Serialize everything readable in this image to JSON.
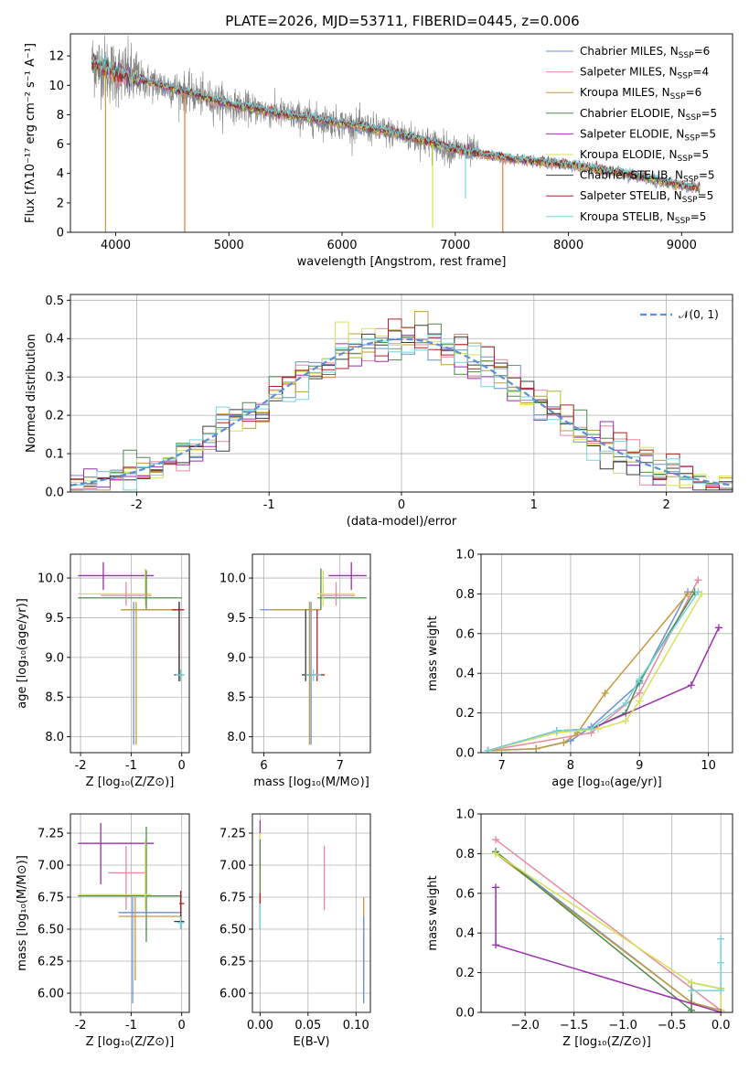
{
  "colors": {
    "Chabrier MILES": "#6a8fcf",
    "Salpeter MILES": "#e8899e",
    "Kroupa MILES": "#c49a3a",
    "Chabrier ELODIE": "#4e8a4e",
    "Salpeter ELODIE": "#9b2fae",
    "Kroupa ELODIE": "#d7e25a",
    "Chabrier STELIB": "#3a3a3a",
    "Salpeter STELIB": "#b22222",
    "Kroupa STELIB": "#74d3d9",
    "data": "#808080",
    "normal": "#5b8ed6",
    "orange": "#e07b39",
    "lime": "#a8d65a"
  },
  "legend_models": [
    {
      "key": "Chabrier MILES",
      "label": "Chabrier MILES, N",
      "sub": "SSP",
      "n": "=6"
    },
    {
      "key": "Salpeter MILES",
      "label": "Salpeter MILES, N",
      "sub": "SSP",
      "n": "=4"
    },
    {
      "key": "Kroupa MILES",
      "label": "Kroupa MILES, N",
      "sub": "SSP",
      "n": "=6"
    },
    {
      "key": "Chabrier ELODIE",
      "label": "Chabrier ELODIE, N",
      "sub": "SSP",
      "n": "=5"
    },
    {
      "key": "Salpeter ELODIE",
      "label": "Salpeter ELODIE, N",
      "sub": "SSP",
      "n": "=5"
    },
    {
      "key": "Kroupa ELODIE",
      "label": "Kroupa ELODIE, N",
      "sub": "SSP",
      "n": "=5"
    },
    {
      "key": "Chabrier STELIB",
      "label": "Chabrier STELIB, N",
      "sub": "SSP",
      "n": "=5"
    },
    {
      "key": "Salpeter STELIB",
      "label": "Salpeter STELIB, N",
      "sub": "SSP",
      "n": "=5"
    },
    {
      "key": "Kroupa STELIB",
      "label": "Kroupa STELIB, N",
      "sub": "SSP",
      "n": "=5"
    }
  ],
  "chart_data": [
    {
      "id": "spectrum",
      "type": "line",
      "title": "PLATE=2026, MJD=53711, FIBERID=0445, z=0.006",
      "xlabel": "wavelength [Angstrom, rest frame]",
      "ylabel": "Flux [fλ10⁻¹⁷ erg cm⁻² s⁻¹ A⁻¹]",
      "xlim": [
        3600,
        9450
      ],
      "ylim": [
        0,
        13.5
      ],
      "xticks": [
        4000,
        5000,
        6000,
        7000,
        8000,
        9000
      ],
      "yticks": [
        0,
        2,
        4,
        6,
        8,
        10,
        12
      ],
      "continuum": [
        [
          3800,
          11.5
        ],
        [
          4000,
          10.8
        ],
        [
          4500,
          9.8
        ],
        [
          5000,
          8.7
        ],
        [
          5500,
          8.0
        ],
        [
          6000,
          7.4
        ],
        [
          6500,
          6.7
        ],
        [
          7000,
          5.6
        ],
        [
          7500,
          5.0
        ],
        [
          8000,
          4.6
        ],
        [
          8500,
          4.0
        ],
        [
          9000,
          3.2
        ],
        [
          9150,
          3.0
        ]
      ],
      "dips": [
        {
          "x": 3910,
          "y": 0
        },
        {
          "x": 4610,
          "y": 0
        },
        {
          "x": 6800,
          "y": 0.3
        },
        {
          "x": 7090,
          "y": 2.3
        },
        {
          "x": 7420,
          "y": 0
        }
      ],
      "legend_position": "upper-right"
    },
    {
      "id": "residuals",
      "type": "histogram",
      "xlabel": "(data-model)/error",
      "ylabel": "Normed distribution",
      "xlim": [
        -2.5,
        2.5
      ],
      "ylim": [
        0,
        0.515
      ],
      "xticks": [
        -2,
        -1,
        0,
        1,
        2
      ],
      "yticks": [
        0.0,
        0.1,
        0.2,
        0.3,
        0.4,
        0.5
      ],
      "bin_width": 0.1,
      "normal_label": "𝒩(0, 1)",
      "legend_position": "upper-right",
      "grid": true
    },
    {
      "id": "age_vs_Z",
      "type": "errorbar",
      "xlabel": "Z [log₁₀(Z/Z⊙)]",
      "ylabel": "age  [log₁₀(age/yr)]",
      "xlim": [
        -2.2,
        0.15
      ],
      "ylim": [
        7.8,
        10.3
      ],
      "xticks": [
        -2,
        -1,
        0
      ],
      "yticks": [
        8.0,
        8.5,
        9.0,
        9.5,
        10.0
      ],
      "points": [
        {
          "m": "Salpeter ELODIE",
          "x": -1.55,
          "y": 10.03,
          "xe": [
            -2.05,
            -0.55
          ],
          "ye": [
            9.85,
            10.2
          ]
        },
        {
          "m": "Kroupa ELODIE",
          "x": -0.72,
          "y": 9.8,
          "xe": [
            -2.05,
            -0.6
          ],
          "ye": [
            9.65,
            10.12
          ]
        },
        {
          "m": "Chabrier ELODIE",
          "x": -0.7,
          "y": 9.75,
          "xe": [
            -2.05,
            0.0
          ],
          "ye": [
            9.6,
            10.1
          ]
        },
        {
          "m": "Salpeter MILES",
          "x": -1.1,
          "y": 9.78,
          "xe": [
            -1.6,
            -0.6
          ],
          "ye": [
            9.65,
            9.95
          ]
        },
        {
          "m": "Chabrier MILES",
          "x": -0.95,
          "y": 9.6,
          "xe": [
            -1.2,
            0.0
          ],
          "ye": [
            7.9,
            9.7
          ]
        },
        {
          "m": "Kroupa MILES",
          "x": -0.9,
          "y": 9.6,
          "xe": [
            -1.2,
            0.0
          ],
          "ye": [
            7.9,
            9.7
          ]
        },
        {
          "m": "Salpeter STELIB",
          "x": -0.05,
          "y": 9.6,
          "xe": [
            -0.2,
            0.05
          ],
          "ye": [
            8.7,
            9.7
          ]
        },
        {
          "m": "Chabrier STELIB",
          "x": -0.05,
          "y": 8.78,
          "xe": [
            -0.15,
            0.05
          ],
          "ye": [
            8.7,
            9.7
          ]
        },
        {
          "m": "Kroupa STELIB",
          "x": -0.02,
          "y": 8.78,
          "xe": [
            -0.12,
            0.05
          ],
          "ye": [
            8.7,
            8.85
          ]
        }
      ]
    },
    {
      "id": "age_vs_mass",
      "type": "errorbar",
      "xlabel": "mass [log₁₀(M/M⊙)]",
      "ylabel": "",
      "xlim": [
        5.85,
        7.4
      ],
      "ylim": [
        7.8,
        10.3
      ],
      "xticks": [
        6,
        7
      ],
      "yticks": [
        8.0,
        8.5,
        9.0,
        9.5,
        10.0
      ],
      "points": [
        {
          "m": "Salpeter ELODIE",
          "x": 7.15,
          "y": 10.03,
          "xe": [
            6.85,
            7.35
          ],
          "ye": [
            9.85,
            10.2
          ]
        },
        {
          "m": "Chabrier ELODIE",
          "x": 6.75,
          "y": 9.75,
          "xe": [
            6.7,
            7.35
          ],
          "ye": [
            9.6,
            10.12
          ]
        },
        {
          "m": "Kroupa ELODIE",
          "x": 6.78,
          "y": 9.8,
          "xe": [
            6.7,
            7.2
          ],
          "ye": [
            9.65,
            10.1
          ]
        },
        {
          "m": "Salpeter MILES",
          "x": 6.95,
          "y": 9.78,
          "xe": [
            6.75,
            7.2
          ],
          "ye": [
            9.65,
            9.95
          ]
        },
        {
          "m": "Chabrier MILES",
          "x": 6.62,
          "y": 9.6,
          "xe": [
            5.95,
            6.75
          ],
          "ye": [
            7.9,
            9.7
          ]
        },
        {
          "m": "Kroupa MILES",
          "x": 6.6,
          "y": 9.6,
          "xe": [
            6.1,
            6.75
          ],
          "ye": [
            7.9,
            9.7
          ]
        },
        {
          "m": "Chabrier STELIB",
          "x": 6.55,
          "y": 8.78,
          "xe": [
            6.5,
            6.65
          ],
          "ye": [
            8.7,
            9.6
          ]
        },
        {
          "m": "Salpeter STELIB",
          "x": 6.7,
          "y": 8.78,
          "xe": [
            6.55,
            6.8
          ],
          "ye": [
            8.7,
            9.6
          ]
        },
        {
          "m": "Kroupa STELIB",
          "x": 6.65,
          "y": 8.78,
          "xe": [
            6.55,
            6.75
          ],
          "ye": [
            8.7,
            8.85
          ]
        }
      ]
    },
    {
      "id": "massweight_vs_age",
      "type": "line",
      "xlabel": "age  [log₁₀(age/yr)]",
      "ylabel": "mass weight",
      "xlim": [
        6.7,
        10.35
      ],
      "ylim": [
        0,
        1.0
      ],
      "xticks": [
        7,
        8,
        9,
        10
      ],
      "yticks": [
        0.0,
        0.2,
        0.4,
        0.6,
        0.8,
        1.0
      ],
      "series": [
        {
          "m": "Chabrier MILES",
          "x": [
            6.8,
            7.5,
            8.0,
            8.3,
            9.0,
            9.7
          ],
          "y": [
            0.01,
            0.02,
            0.06,
            0.13,
            0.35,
            0.81
          ]
        },
        {
          "m": "Salpeter MILES",
          "x": [
            6.8,
            8.3,
            9.0,
            9.85
          ],
          "y": [
            0.01,
            0.1,
            0.3,
            0.87
          ]
        },
        {
          "m": "Kroupa MILES",
          "x": [
            6.8,
            7.5,
            7.9,
            8.1,
            8.5,
            9.7
          ],
          "y": [
            0.01,
            0.02,
            0.05,
            0.1,
            0.3,
            0.8
          ]
        },
        {
          "m": "Chabrier ELODIE",
          "x": [
            6.8,
            7.8,
            8.3,
            8.8,
            9.0,
            9.8
          ],
          "y": [
            0.01,
            0.11,
            0.12,
            0.2,
            0.36,
            0.81
          ]
        },
        {
          "m": "Salpeter ELODIE",
          "x": [
            6.8,
            7.8,
            8.3,
            9.75,
            10.15
          ],
          "y": [
            0.01,
            0.11,
            0.12,
            0.34,
            0.63
          ]
        },
        {
          "m": "Kroupa ELODIE",
          "x": [
            6.8,
            7.8,
            8.4,
            8.8,
            9.0,
            9.9
          ],
          "y": [
            0.01,
            0.1,
            0.12,
            0.16,
            0.26,
            0.8
          ]
        },
        {
          "m": "Kroupa STELIB",
          "x": [
            6.8,
            7.8,
            8.3,
            8.8,
            9.0,
            9.85
          ],
          "y": [
            0.01,
            0.11,
            0.12,
            0.25,
            0.37,
            0.81
          ]
        }
      ]
    },
    {
      "id": "mass_vs_Z",
      "type": "errorbar",
      "xlabel": "Z [log₁₀(Z/Z⊙)]",
      "ylabel": "mass [log₁₀(M/M⊙)]",
      "xlim": [
        -2.2,
        0.15
      ],
      "ylim": [
        5.85,
        7.4
      ],
      "xticks": [
        -2,
        -1,
        0
      ],
      "yticks": [
        6.0,
        6.25,
        6.5,
        6.75,
        7.0,
        7.25
      ],
      "points": [
        {
          "m": "Salpeter ELODIE",
          "x": -1.6,
          "y": 7.17,
          "xe": [
            -2.05,
            -0.55
          ],
          "ye": [
            6.85,
            7.33
          ]
        },
        {
          "m": "Salpeter MILES",
          "x": -1.1,
          "y": 6.94,
          "xe": [
            -1.45,
            -0.7
          ],
          "ye": [
            6.65,
            7.15
          ]
        },
        {
          "m": "Chabrier ELODIE",
          "x": -0.7,
          "y": 6.76,
          "xe": [
            -2.05,
            0.0
          ],
          "ye": [
            6.4,
            7.3
          ]
        },
        {
          "m": "Kroupa ELODIE",
          "x": -0.72,
          "y": 6.77,
          "xe": [
            -2.05,
            -0.6
          ],
          "ye": [
            6.65,
            7.2
          ]
        },
        {
          "m": "Chabrier MILES",
          "x": -0.97,
          "y": 6.63,
          "xe": [
            -1.25,
            0.0
          ],
          "ye": [
            5.92,
            6.75
          ]
        },
        {
          "m": "Kroupa MILES",
          "x": -0.92,
          "y": 6.6,
          "xe": [
            -1.25,
            0.0
          ],
          "ye": [
            6.1,
            6.75
          ]
        },
        {
          "m": "Salpeter STELIB",
          "x": -0.02,
          "y": 6.7,
          "xe": [
            -0.05,
            0.05
          ],
          "ye": [
            6.62,
            6.8
          ]
        },
        {
          "m": "Chabrier STELIB",
          "x": -0.02,
          "y": 6.56,
          "xe": [
            -0.15,
            0.05
          ],
          "ye": [
            6.5,
            6.62
          ]
        },
        {
          "m": "Kroupa STELIB",
          "x": -0.02,
          "y": 6.55,
          "xe": [
            -0.08,
            0.05
          ],
          "ye": [
            6.5,
            6.6
          ]
        }
      ]
    },
    {
      "id": "mass_vs_ebv",
      "type": "errorbar",
      "xlabel": "E(B-V)",
      "ylabel": "",
      "xlim": [
        -0.008,
        0.115
      ],
      "ylim": [
        5.85,
        7.4
      ],
      "xticks": [
        0.0,
        0.05,
        0.1
      ],
      "ytick_labels": [
        "6.00",
        "6.25",
        "6.50",
        "6.75",
        "7.00",
        "7.25"
      ],
      "xtick_labels": [
        "0.00",
        "0.05",
        "0.10"
      ],
      "yticks": [
        6.0,
        6.25,
        6.5,
        6.75,
        7.0,
        7.25
      ],
      "points": [
        {
          "m": "Salpeter ELODIE",
          "x": 0.0,
          "y": 7.17,
          "xe": [
            0.0,
            0.0
          ],
          "ye": [
            7.0,
            7.35
          ]
        },
        {
          "m": "Kroupa ELODIE",
          "x": 0.0,
          "y": 6.9,
          "xe": [
            0.0,
            0.0
          ],
          "ye": [
            6.55,
            7.25
          ]
        },
        {
          "m": "Chabrier ELODIE",
          "x": 0.0,
          "y": 6.75,
          "xe": [
            0.0,
            0.0
          ],
          "ye": [
            6.5,
            7.2
          ]
        },
        {
          "m": "Salpeter MILES",
          "x": 0.067,
          "y": 6.9,
          "xe": [
            0.067,
            0.067
          ],
          "ye": [
            6.65,
            7.15
          ]
        },
        {
          "m": "Kroupa MILES",
          "x": 0.108,
          "y": 6.6,
          "xe": [
            0.108,
            0.108
          ],
          "ye": [
            6.1,
            6.75
          ]
        },
        {
          "m": "Chabrier MILES",
          "x": 0.108,
          "y": 6.3,
          "xe": [
            0.108,
            0.108
          ],
          "ye": [
            5.92,
            6.6
          ]
        },
        {
          "m": "Salpeter STELIB",
          "x": 0.0,
          "y": 6.72,
          "xe": [
            0.0,
            0.0
          ],
          "ye": [
            6.68,
            6.78
          ]
        },
        {
          "m": "Kroupa STELIB",
          "x": 0.0,
          "y": 6.6,
          "xe": [
            0.0,
            0.0
          ],
          "ye": [
            6.5,
            6.7
          ]
        }
      ]
    },
    {
      "id": "massweight_vs_Z",
      "type": "line",
      "xlabel": "Z [log₁₀(Z/Z⊙)]",
      "ylabel": "mass weight",
      "xlim": [
        -2.45,
        0.12
      ],
      "ylim": [
        0,
        1.0
      ],
      "xticks": [
        -2.0,
        -1.5,
        -1.0,
        -0.5,
        0.0
      ],
      "xtick_labels": [
        "−2.0",
        "−1.5",
        "−1.0",
        "−0.5",
        "0.0"
      ],
      "yticks": [
        0.0,
        0.2,
        0.4,
        0.6,
        0.8,
        1.0
      ],
      "series": [
        {
          "m": "Salpeter MILES",
          "x": [
            -2.3,
            0.0
          ],
          "y": [
            0.87,
            0.01
          ]
        },
        {
          "m": "Chabrier MILES",
          "x": [
            -2.3,
            -0.3,
            0.0
          ],
          "y": [
            0.81,
            0.05,
            0.01
          ]
        },
        {
          "m": "Kroupa MILES",
          "x": [
            -2.3,
            -0.3,
            0.0
          ],
          "y": [
            0.8,
            0.05,
            0.01
          ]
        },
        {
          "m": "Chabrier ELODIE",
          "x": [
            -2.3,
            -0.3,
            -0.3,
            0.0,
            0.0
          ],
          "y": [
            0.81,
            0.01,
            0.15,
            0.12,
            0.01
          ]
        },
        {
          "m": "Kroupa ELODIE",
          "x": [
            -2.3,
            -0.3,
            0.0,
            0.0
          ],
          "y": [
            0.8,
            0.15,
            0.12,
            0.01
          ]
        },
        {
          "m": "Salpeter ELODIE",
          "x": [
            -2.3,
            -2.3,
            0.0
          ],
          "y": [
            0.63,
            0.34,
            0.0
          ]
        },
        {
          "m": "Kroupa STELIB",
          "x": [
            -0.3,
            0.0,
            0.0,
            0.0
          ],
          "y": [
            0.11,
            0.11,
            0.25,
            0.37
          ]
        }
      ]
    }
  ]
}
